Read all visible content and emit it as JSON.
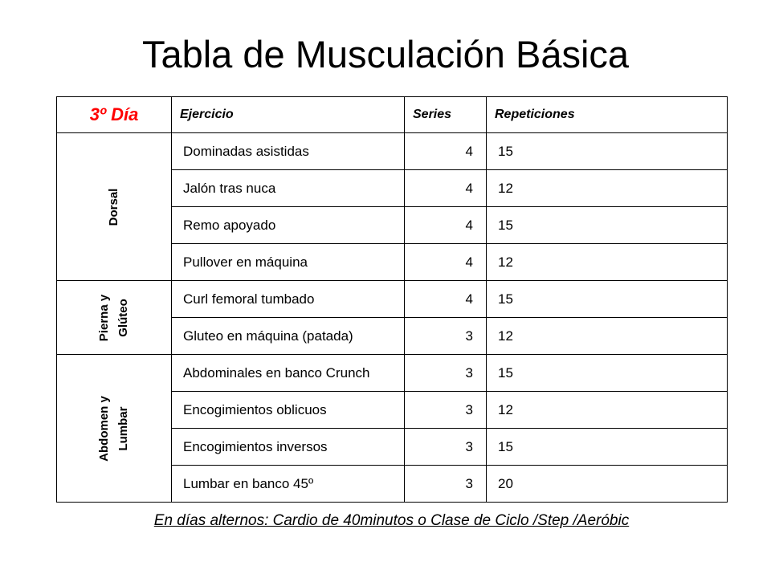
{
  "title": "Tabla de Musculación Básica",
  "table": {
    "day": "3º Día",
    "headers": {
      "exercise": "Ejercicio",
      "series": "Series",
      "reps": "Repeticiones"
    },
    "groups": [
      {
        "label": "Dorsal",
        "rows": [
          {
            "exercise": "Dominadas asistidas",
            "series": "4",
            "reps": "15"
          },
          {
            "exercise": "Jalón tras nuca",
            "series": "4",
            "reps": "12"
          },
          {
            "exercise": "Remo apoyado",
            "series": "4",
            "reps": "15"
          },
          {
            "exercise": "Pullover en máquina",
            "series": "4",
            "reps": "12"
          }
        ]
      },
      {
        "label": "Pierna y\nGlúteo",
        "rows": [
          {
            "exercise": "Curl femoral tumbado",
            "series": "4",
            "reps": "15"
          },
          {
            "exercise": "Gluteo en máquina (patada)",
            "series": "3",
            "reps": "12"
          }
        ]
      },
      {
        "label": "Abdomen y\nLumbar",
        "rows": [
          {
            "exercise": "Abdominales en banco Crunch",
            "series": "3",
            "reps": "15"
          },
          {
            "exercise": "Encogimientos oblicuos",
            "series": "3",
            "reps": "12"
          },
          {
            "exercise": "Encogimientos inversos",
            "series": "3",
            "reps": "15"
          },
          {
            "exercise": "Lumbar en banco 45º",
            "series": "3",
            "reps": "20"
          }
        ]
      }
    ]
  },
  "footer": "En días alternos: Cardio de 40minutos o Clase de Ciclo /Step /Aeróbic",
  "colors": {
    "day_label": "#ff0000",
    "text": "#000000",
    "border": "#000000"
  }
}
